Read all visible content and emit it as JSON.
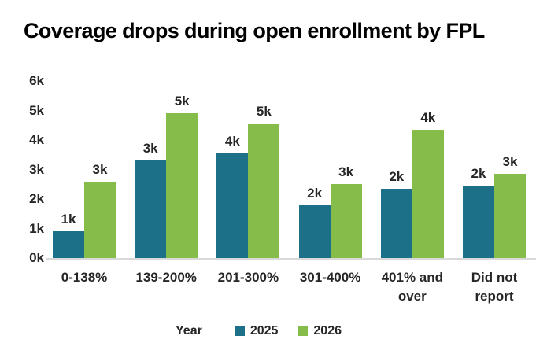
{
  "title": "Coverage drops during open enrollment by FPL",
  "colors": {
    "series_2025": "#1C7189",
    "series_2026": "#86BD4A",
    "axis_line": "#D9D9D9",
    "label_text": "#262626",
    "title_text": "#000000"
  },
  "chart_data": {
    "type": "bar",
    "title": "Coverage drops during open enrollment by FPL",
    "categories": [
      "0-138%",
      "139-200%",
      "201-300%",
      "301-400%",
      "401% and over",
      "Did not report"
    ],
    "series": [
      {
        "name": "2025",
        "color": "#1C7189",
        "values": [
          900,
          3300,
          3550,
          1800,
          2350,
          2450
        ],
        "labels": [
          "1k",
          "3k",
          "4k",
          "2k",
          "2k",
          "2k"
        ]
      },
      {
        "name": "2026",
        "color": "#86BD4A",
        "values": [
          2600,
          4900,
          4550,
          2500,
          4350,
          2850
        ],
        "labels": [
          "3k",
          "5k",
          "5k",
          "3k",
          "4k",
          "3k"
        ]
      }
    ],
    "xlabel": "",
    "ylabel": "",
    "ylim": [
      0,
      6000
    ],
    "y_ticks": [
      "0k",
      "1k",
      "2k",
      "3k",
      "4k",
      "5k",
      "6k"
    ],
    "grid": false,
    "legend_position": "bottom",
    "legend_title": "Year"
  }
}
